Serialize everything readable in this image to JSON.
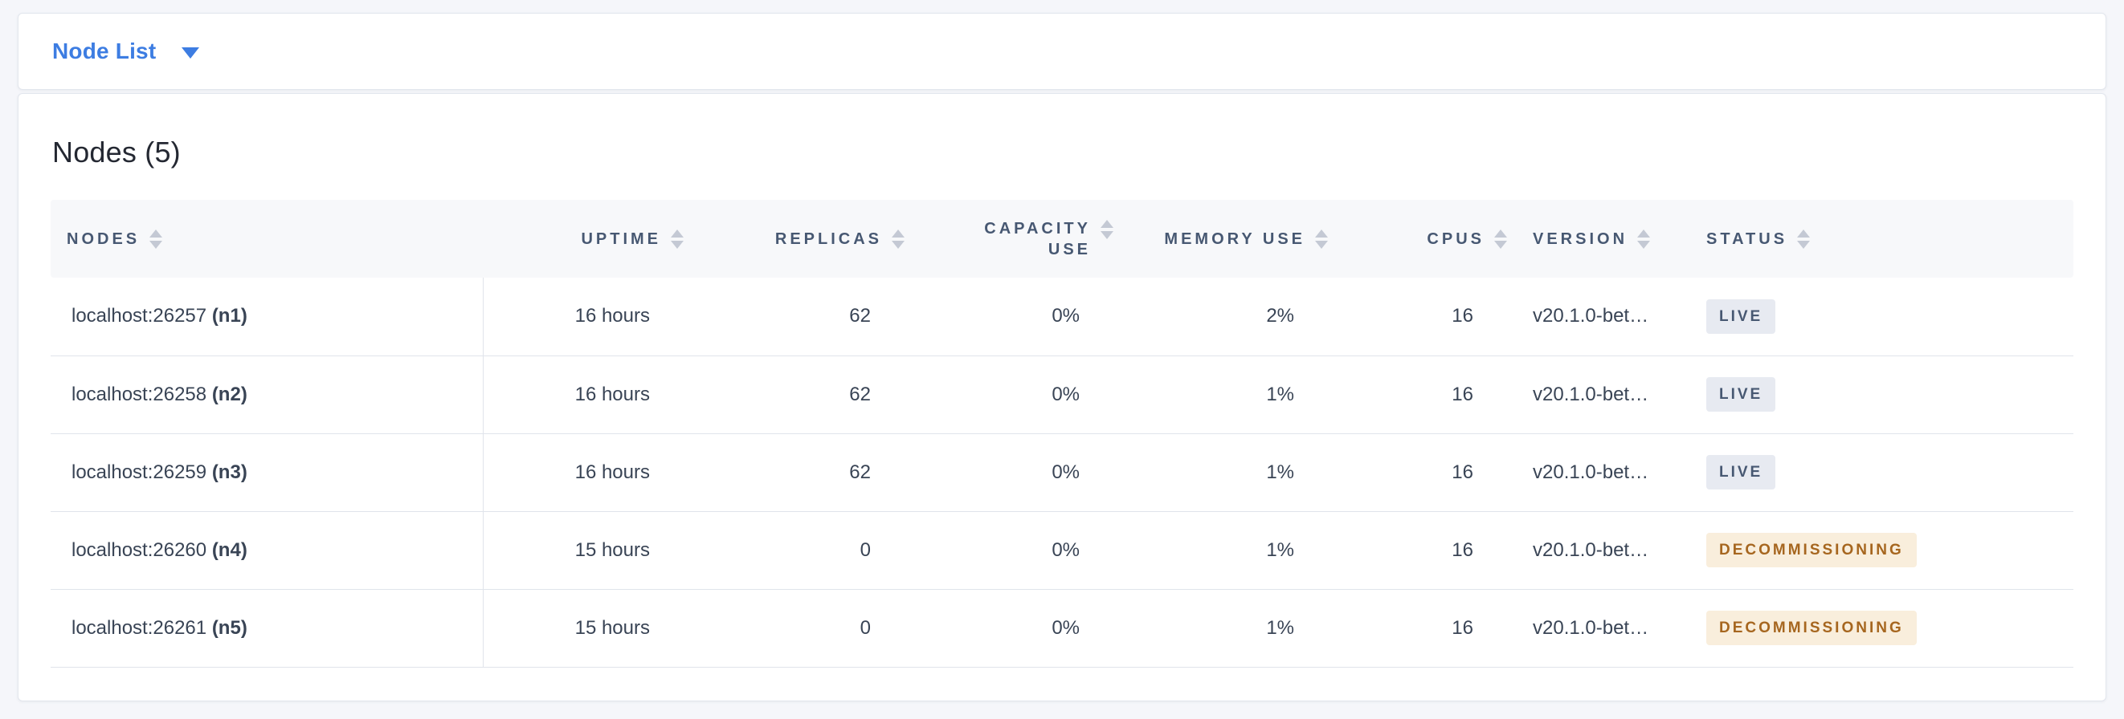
{
  "toolbar": {
    "view_selector_label": "Node List"
  },
  "panel": {
    "title": "Nodes (5)"
  },
  "table": {
    "columns": [
      {
        "key": "nodes",
        "label": "NODES",
        "align": "left"
      },
      {
        "key": "uptime",
        "label": "UPTIME",
        "align": "right"
      },
      {
        "key": "replicas",
        "label": "REPLICAS",
        "align": "right"
      },
      {
        "key": "capacity_use",
        "label": "CAPACITY USE",
        "align": "right",
        "two_line": true,
        "line1": "CAPACITY",
        "line2": "USE"
      },
      {
        "key": "memory_use",
        "label": "MEMORY USE",
        "align": "right"
      },
      {
        "key": "cpus",
        "label": "CPUS",
        "align": "right"
      },
      {
        "key": "version",
        "label": "VERSION",
        "align": "left"
      },
      {
        "key": "status",
        "label": "STATUS",
        "align": "left"
      }
    ],
    "rows": [
      {
        "address": "localhost:26257",
        "node_id": "(n1)",
        "uptime": "16 hours",
        "replicas": "62",
        "capacity_use": "0%",
        "memory_use": "2%",
        "cpus": "16",
        "version": "v20.1.0-bet…",
        "status": "LIVE",
        "status_type": "live"
      },
      {
        "address": "localhost:26258",
        "node_id": "(n2)",
        "uptime": "16 hours",
        "replicas": "62",
        "capacity_use": "0%",
        "memory_use": "1%",
        "cpus": "16",
        "version": "v20.1.0-bet…",
        "status": "LIVE",
        "status_type": "live"
      },
      {
        "address": "localhost:26259",
        "node_id": "(n3)",
        "uptime": "16 hours",
        "replicas": "62",
        "capacity_use": "0%",
        "memory_use": "1%",
        "cpus": "16",
        "version": "v20.1.0-bet…",
        "status": "LIVE",
        "status_type": "live"
      },
      {
        "address": "localhost:26260",
        "node_id": "(n4)",
        "uptime": "15 hours",
        "replicas": "0",
        "capacity_use": "0%",
        "memory_use": "1%",
        "cpus": "16",
        "version": "v20.1.0-bet…",
        "status": "DECOMMISSIONING",
        "status_type": "decommissioning"
      },
      {
        "address": "localhost:26261",
        "node_id": "(n5)",
        "uptime": "15 hours",
        "replicas": "0",
        "capacity_use": "0%",
        "memory_use": "1%",
        "cpus": "16",
        "version": "v20.1.0-bet…",
        "status": "DECOMMISSIONING",
        "status_type": "decommissioning"
      }
    ]
  },
  "icons": {
    "dropdown": "caret-down-icon",
    "sort": "sort-icon"
  },
  "colors": {
    "accent_blue": "#3D7DE2",
    "page_bg": "#F5F6FA",
    "card_border": "#E2E6ED",
    "header_bg": "#F7F8FA",
    "header_text": "#475872",
    "cell_text": "#394455",
    "row_border": "#E0E4EB",
    "sort_icon": "#C4C9D4",
    "live_bg": "#E7EAF1",
    "live_text": "#475872",
    "decommissioning_bg": "#F9EEDC",
    "decommissioning_text": "#A6661F",
    "title_text": "#242832"
  }
}
